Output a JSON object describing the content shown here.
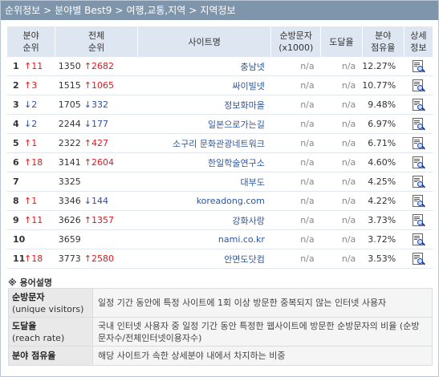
{
  "breadcrumb": [
    "순위정보",
    "분야별 Best9",
    "여행,교통,지역",
    "지역정보"
  ],
  "breadcrumb_sep": ">",
  "columns": {
    "rank": [
      "분야",
      "순위"
    ],
    "total": [
      "전체",
      "순위"
    ],
    "site": "사이트명",
    "visitors": [
      "순방문자",
      "(x1000)"
    ],
    "reach": "도달율",
    "share": [
      "분야",
      "점유율"
    ],
    "detail": [
      "상세",
      "정보"
    ]
  },
  "rows": [
    {
      "rank": "1",
      "rank_change": "↑11",
      "rank_dir": "up",
      "total": "1350",
      "total_change": "↑2682",
      "total_dir": "up",
      "site": "충남넷",
      "visitors": "n/a",
      "reach": "n/a",
      "share": "12.27%"
    },
    {
      "rank": "2",
      "rank_change": "↑3",
      "rank_dir": "up",
      "total": "1515",
      "total_change": "↑1065",
      "total_dir": "up",
      "site": "싸이빌넷",
      "visitors": "n/a",
      "reach": "n/a",
      "share": "10.77%"
    },
    {
      "rank": "3",
      "rank_change": "↓2",
      "rank_dir": "down",
      "total": "1705",
      "total_change": "↓332",
      "total_dir": "down",
      "site": "정보화마을",
      "visitors": "n/a",
      "reach": "n/a",
      "share": "9.48%"
    },
    {
      "rank": "4",
      "rank_change": "↓2",
      "rank_dir": "down",
      "total": "2244",
      "total_change": "↓177",
      "total_dir": "down",
      "site": "일본으로가는길",
      "visitors": "n/a",
      "reach": "n/a",
      "share": "6.97%"
    },
    {
      "rank": "5",
      "rank_change": "↑1",
      "rank_dir": "up",
      "total": "2322",
      "total_change": "↑427",
      "total_dir": "up",
      "site": "소구리 문화관광네트워크",
      "visitors": "n/a",
      "reach": "n/a",
      "share": "6.71%"
    },
    {
      "rank": "6",
      "rank_change": "↑18",
      "rank_dir": "up",
      "total": "3141",
      "total_change": "↑2604",
      "total_dir": "up",
      "site": "한일학술연구소",
      "visitors": "n/a",
      "reach": "n/a",
      "share": "4.60%"
    },
    {
      "rank": "7",
      "rank_change": "",
      "rank_dir": "",
      "total": "3325",
      "total_change": "",
      "total_dir": "",
      "site": "대부도",
      "visitors": "n/a",
      "reach": "n/a",
      "share": "4.25%"
    },
    {
      "rank": "8",
      "rank_change": "↑1",
      "rank_dir": "up",
      "total": "3346",
      "total_change": "↓144",
      "total_dir": "down",
      "site": "koreadong.com",
      "visitors": "n/a",
      "reach": "n/a",
      "share": "4.22%"
    },
    {
      "rank": "9",
      "rank_change": "↑11",
      "rank_dir": "up",
      "total": "3626",
      "total_change": "↑1357",
      "total_dir": "up",
      "site": "강화사랑",
      "visitors": "n/a",
      "reach": "n/a",
      "share": "3.73%"
    },
    {
      "rank": "10",
      "rank_change": "",
      "rank_dir": "",
      "total": "3659",
      "total_change": "",
      "total_dir": "",
      "site": "nami.co.kr",
      "visitors": "n/a",
      "reach": "n/a",
      "share": "3.72%"
    },
    {
      "rank": "11",
      "rank_change": "↑18",
      "rank_dir": "up",
      "total": "3773",
      "total_change": "↑2580",
      "total_dir": "up",
      "site": "안면도닷컴",
      "visitors": "n/a",
      "reach": "n/a",
      "share": "3.53%"
    }
  ],
  "glossary": {
    "title": "※ 용어설명",
    "items": [
      {
        "term": "순방문자",
        "sub": "(unique visitors)",
        "desc": "일정 기간 동안에 특정 사이트에 1회 이상 방문한 중복되지 않는 인터넷 사용자"
      },
      {
        "term": "도달율",
        "sub": "(reach rate)",
        "desc": "국내 인터넷 사용자 중 일정 기간 동안 특정한 웹사이트에 방문한 순방문자의 비율 (순방문자수/전체인터넷이용자수)"
      },
      {
        "term": "분야 점유율",
        "sub": "",
        "desc": "해당 사이트가 속한 상세분야 내에서 차지하는 비중"
      }
    ]
  },
  "colors": {
    "header_bg": "#dde6f1",
    "crumb_bg": "#7f95ab",
    "up": "#e0181f",
    "down": "#2a50a8",
    "link": "#2b57a0"
  },
  "icons": {
    "detail": "document-magnifier-icon"
  }
}
